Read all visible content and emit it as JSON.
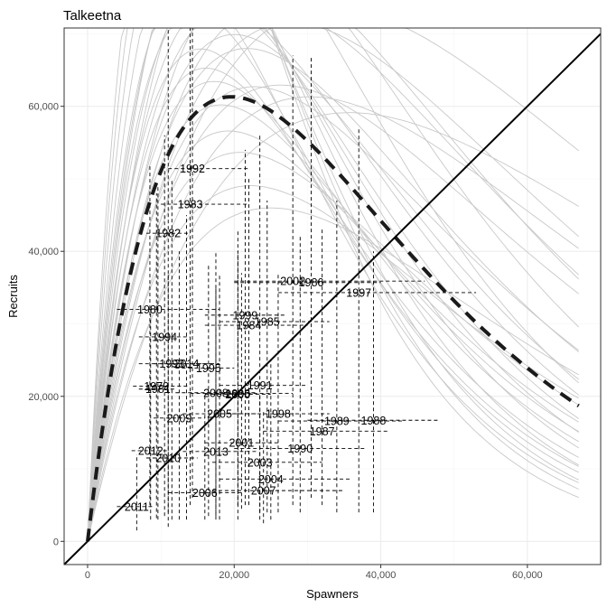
{
  "chart_data": {
    "type": "scatter",
    "title": "Talkeetna",
    "xlabel": "Spawners",
    "ylabel": "Recruits",
    "xlim": [
      -3200,
      70000
    ],
    "ylim": [
      -3200,
      70800
    ],
    "x_ticks": [
      0,
      20000,
      40000,
      60000
    ],
    "x_tick_labels": [
      "0",
      "20,000",
      "40,000",
      "60,000"
    ],
    "y_ticks": [
      0,
      20000,
      40000,
      60000
    ],
    "y_tick_labels": [
      "0",
      "20,000",
      "40,000",
      "60,000"
    ],
    "grid": true,
    "points": [
      {
        "year": "1979",
        "x": 9400,
        "y": 21400,
        "x_lo": 6200,
        "x_hi": 14000,
        "y_lo": 3200,
        "y_hi": 48000
      },
      {
        "year": "1980",
        "x": 8500,
        "y": 32000,
        "x_lo": 4000,
        "x_hi": 18000,
        "y_lo": 5000,
        "y_hi": 52000
      },
      {
        "year": "1981",
        "x": 9600,
        "y": 21000,
        "x_lo": 7000,
        "x_hi": 12000,
        "y_lo": 3000,
        "y_hi": 49000
      },
      {
        "year": "1982",
        "x": 11000,
        "y": 42500,
        "x_lo": 8000,
        "x_hi": 14000,
        "y_lo": 2000,
        "y_hi": 70800
      },
      {
        "year": "1983",
        "x": 14000,
        "y": 46500,
        "x_lo": 10000,
        "x_hi": 22000,
        "y_lo": 5000,
        "y_hi": 70800
      },
      {
        "year": "1984",
        "x": 22000,
        "y": 29800,
        "x_lo": 16000,
        "x_hi": 30000,
        "y_lo": 5000,
        "y_hi": 50000
      },
      {
        "year": "1985",
        "x": 24500,
        "y": 30300,
        "x_lo": 18000,
        "x_hi": 33000,
        "y_lo": 4000,
        "y_hi": 47000
      },
      {
        "year": "1986",
        "x": 30500,
        "y": 35700,
        "x_lo": 20000,
        "x_hi": 40000,
        "y_lo": 6000,
        "y_hi": 67000
      },
      {
        "year": "1987",
        "x": 32000,
        "y": 15200,
        "x_lo": 24000,
        "x_hi": 41000,
        "y_lo": 5000,
        "y_hi": 43000
      },
      {
        "year": "1988",
        "x": 39000,
        "y": 16700,
        "x_lo": 30000,
        "x_hi": 48000,
        "y_lo": 4000,
        "y_hi": 40000
      },
      {
        "year": "1989",
        "x": 34000,
        "y": 16600,
        "x_lo": 26000,
        "x_hi": 43000,
        "y_lo": 4000,
        "y_hi": 47000
      },
      {
        "year": "1990",
        "x": 29000,
        "y": 12800,
        "x_lo": 20000,
        "x_hi": 38000,
        "y_lo": 4000,
        "y_hi": 42000
      },
      {
        "year": "1991",
        "x": 23500,
        "y": 21500,
        "x_lo": 18000,
        "x_hi": 30000,
        "y_lo": 4000,
        "y_hi": 56000
      },
      {
        "year": "1992",
        "x": 14300,
        "y": 51400,
        "x_lo": 11000,
        "x_hi": 22000,
        "y_lo": 6000,
        "y_hi": 70800
      },
      {
        "year": "1993",
        "x": 11500,
        "y": 24500,
        "x_lo": 7000,
        "x_hi": 17000,
        "y_lo": 3000,
        "y_hi": 50000
      },
      {
        "year": "1994",
        "x": 10500,
        "y": 28200,
        "x_lo": 7000,
        "x_hi": 14000,
        "y_lo": 3500,
        "y_hi": 56000
      },
      {
        "year": "1995",
        "x": 16500,
        "y": 23900,
        "x_lo": 12000,
        "x_hi": 20000,
        "y_lo": 3500,
        "y_hi": 38000
      },
      {
        "year": "1996",
        "x": 20500,
        "y": 20400,
        "x_lo": 14000,
        "x_hi": 28000,
        "y_lo": 3000,
        "y_hi": 43000
      },
      {
        "year": "1997",
        "x": 37000,
        "y": 34300,
        "x_lo": 26000,
        "x_hi": 53000,
        "y_lo": 4000,
        "y_hi": 57000
      },
      {
        "year": "1998",
        "x": 26000,
        "y": 17600,
        "x_lo": 18000,
        "x_hi": 33000,
        "y_lo": 4000,
        "y_hi": 37000
      },
      {
        "year": "1999",
        "x": 21500,
        "y": 31200,
        "x_lo": 16000,
        "x_hi": 27000,
        "y_lo": 5000,
        "y_hi": 54000
      },
      {
        "year": "2000",
        "x": 20500,
        "y": 20300,
        "x_lo": 16000,
        "x_hi": 25000,
        "y_lo": 5000,
        "y_hi": 40000
      },
      {
        "year": "2001",
        "x": 21000,
        "y": 13600,
        "x_lo": 16000,
        "x_hi": 26000,
        "y_lo": 4500,
        "y_hi": 37000
      },
      {
        "year": "2002",
        "x": 28000,
        "y": 35900,
        "x_lo": 20000,
        "x_hi": 46000,
        "y_lo": 5000,
        "y_hi": 67000
      },
      {
        "year": "2003",
        "x": 23500,
        "y": 10900,
        "x_lo": 17000,
        "x_hi": 32000,
        "y_lo": 3000,
        "y_hi": 20000
      },
      {
        "year": "2004",
        "x": 25000,
        "y": 8600,
        "x_lo": 18000,
        "x_hi": 36000,
        "y_lo": 3000,
        "y_hi": 25000
      },
      {
        "year": "2005",
        "x": 18000,
        "y": 17600,
        "x_lo": 13000,
        "x_hi": 23000,
        "y_lo": 3000,
        "y_hi": 37000
      },
      {
        "year": "2006",
        "x": 16000,
        "y": 6700,
        "x_lo": 11000,
        "x_hi": 21000,
        "y_lo": 3000,
        "y_hi": 20000
      },
      {
        "year": "2007",
        "x": 24000,
        "y": 7000,
        "x_lo": 17000,
        "x_hi": 35000,
        "y_lo": 2500,
        "y_hi": 18000
      },
      {
        "year": "2008",
        "x": 17500,
        "y": 20500,
        "x_lo": 12000,
        "x_hi": 23000,
        "y_lo": 3500,
        "y_hi": 40000
      },
      {
        "year": "2009",
        "x": 12500,
        "y": 17000,
        "x_lo": 9000,
        "x_hi": 16000,
        "y_lo": 3000,
        "y_hi": 40000
      },
      {
        "year": "2010",
        "x": 11000,
        "y": 11500,
        "x_lo": 8000,
        "x_hi": 15000,
        "y_lo": 4000,
        "y_hi": 37000
      },
      {
        "year": "2011",
        "x": 6700,
        "y": 4800,
        "x_lo": 4000,
        "x_hi": 9000,
        "y_lo": 1500,
        "y_hi": 12000
      },
      {
        "year": "2012",
        "x": 8600,
        "y": 12500,
        "x_lo": 6000,
        "x_hi": 11000,
        "y_lo": 3000,
        "y_hi": 32000
      },
      {
        "year": "2013",
        "x": 17500,
        "y": 12400,
        "x_lo": 13000,
        "x_hi": 23000,
        "y_lo": 3000,
        "y_hi": 35000
      },
      {
        "year": "2014",
        "x": 13500,
        "y": 24500,
        "x_lo": 9000,
        "x_hi": 18000,
        "y_lo": 3000,
        "y_hi": 45000
      }
    ],
    "median_curve": {
      "alpha": 8.5,
      "beta": 5.1e-05
    },
    "replicate_curves": [
      {
        "alpha": 5.0,
        "beta": 4e-05
      },
      {
        "alpha": 6.0,
        "beta": 4.5e-05
      },
      {
        "alpha": 7.0,
        "beta": 4.8e-05
      },
      {
        "alpha": 8.0,
        "beta": 5.2e-05
      },
      {
        "alpha": 9.0,
        "beta": 5.5e-05
      },
      {
        "alpha": 10.0,
        "beta": 5.8e-05
      },
      {
        "alpha": 11.0,
        "beta": 6.2e-05
      },
      {
        "alpha": 12.0,
        "beta": 6.5e-05
      },
      {
        "alpha": 13.5,
        "beta": 6.8e-05
      },
      {
        "alpha": 15.0,
        "beta": 7.2e-05
      },
      {
        "alpha": 7.5,
        "beta": 4.4e-05
      },
      {
        "alpha": 9.5,
        "beta": 5e-05
      },
      {
        "alpha": 11.5,
        "beta": 5.7e-05
      },
      {
        "alpha": 6.5,
        "beta": 3.8e-05
      },
      {
        "alpha": 8.5,
        "beta": 4.6e-05
      },
      {
        "alpha": 10.5,
        "beta": 5.3e-05
      },
      {
        "alpha": 12.5,
        "beta": 6e-05
      },
      {
        "alpha": 14.0,
        "beta": 6.4e-05
      },
      {
        "alpha": 16.0,
        "beta": 6.9e-05
      },
      {
        "alpha": 18.0,
        "beta": 7.4e-05
      },
      {
        "alpha": 5.5,
        "beta": 3.3e-05
      },
      {
        "alpha": 7.0,
        "beta": 3.6e-05
      },
      {
        "alpha": 4.5,
        "beta": 2.8e-05
      },
      {
        "alpha": 6.0,
        "beta": 3e-05
      },
      {
        "alpha": 9.0,
        "beta": 4.2e-05
      },
      {
        "alpha": 20.0,
        "beta": 7.8e-05
      },
      {
        "alpha": 22.0,
        "beta": 8.2e-05
      },
      {
        "alpha": 8.0,
        "beta": 4e-05
      },
      {
        "alpha": 11.0,
        "beta": 4.8e-05
      },
      {
        "alpha": 13.0,
        "beta": 5.5e-05
      }
    ],
    "curve_x_max": 67000,
    "replacement_line": true,
    "colors": {
      "points_and_bars": "#000000",
      "median_curve": "#1a1a1a",
      "replicate_curves": "#c8c8c8",
      "replacement_line": "#000000",
      "grid": "#ebebeb",
      "panel_border": "#333333"
    }
  }
}
